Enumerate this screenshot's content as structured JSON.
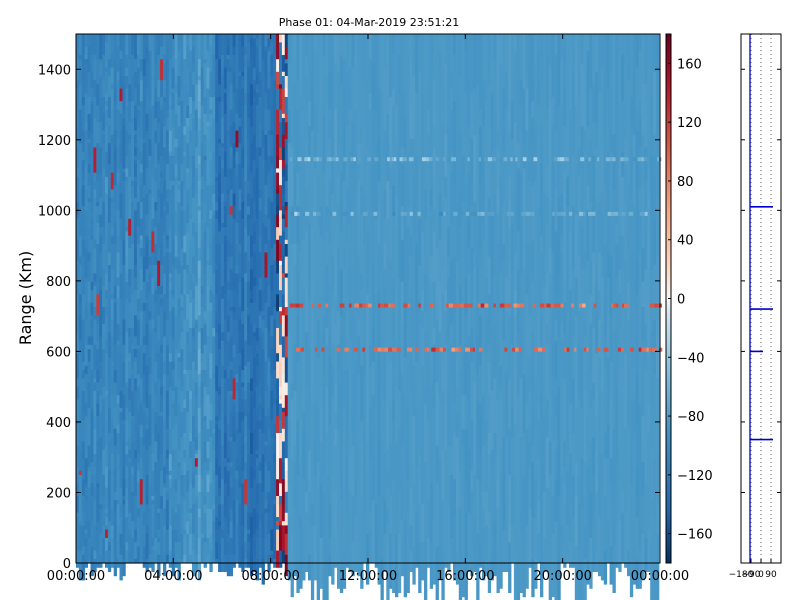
{
  "chart_data": [
    {
      "type": "heatmap",
      "title": "Phase 01: 04-Mar-2019 23:51:21",
      "xlabel": "",
      "ylabel": "Range (Km)",
      "x_tick_labels": [
        "00:00:00",
        "04:00:00",
        "08:00:00",
        "12:00:00",
        "16:00:00",
        "20:00:00",
        "00:00:00"
      ],
      "x_range_hours": [
        0,
        24
      ],
      "y_ticks": [
        0,
        200,
        400,
        600,
        800,
        1000,
        1200,
        1400
      ],
      "ylim": [
        0,
        1500
      ],
      "colormap": "RdBu_r",
      "colorbar": {
        "ticks": [
          160,
          120,
          80,
          40,
          0,
          -40,
          -80,
          -120,
          -160
        ],
        "range": [
          -180,
          180
        ]
      },
      "colors": {
        "darkest_blue": "#08306b",
        "dark_blue": "#2c6aa8",
        "mid_blue": "#5b96c8",
        "light_blue": "#8bbcda",
        "pale": "#f5f5f5",
        "red": "#d6604d",
        "dark_red": "#67001f"
      },
      "regions": [
        {
          "x_hours": [
            0,
            3.8
          ],
          "phase_deg": -110,
          "note_value": "mottled"
        },
        {
          "x_hours": [
            3.8,
            5.7
          ],
          "phase_deg": -95
        },
        {
          "x_hours": [
            5.7,
            8.2
          ],
          "phase_deg": -125
        },
        {
          "x_hours": [
            8.2,
            8.7
          ],
          "phase_deg": 0,
          "note_value": "alternating"
        },
        {
          "x_hours": [
            8.7,
            24
          ],
          "phase_deg": -85
        }
      ],
      "bands": [
        {
          "range_km": 605,
          "x_hours": [
            8.7,
            24
          ],
          "phase_deg": 100
        },
        {
          "range_km": 730,
          "x_hours": [
            8.7,
            24
          ],
          "phase_deg": 100
        },
        {
          "range_km": 1145,
          "x_hours": [
            8.7,
            24
          ],
          "phase_deg": -60
        },
        {
          "range_km": 990,
          "x_hours": [
            8.7,
            24
          ],
          "phase_deg": -70
        }
      ]
    },
    {
      "type": "line",
      "x_tick_labels": [
        "−180",
        "−90",
        "0",
        "90"
      ],
      "xlim": [
        -180,
        180
      ],
      "ylim": [
        0,
        1500
      ],
      "grid": true,
      "profile_x_deg": -180,
      "spikes": [
        {
          "range_km": 1010,
          "x_deg": 0
        },
        {
          "range_km": 720,
          "x_deg": 0
        },
        {
          "range_km": 600,
          "x_deg": -90
        },
        {
          "range_km": 350,
          "x_deg": 0
        }
      ]
    }
  ]
}
